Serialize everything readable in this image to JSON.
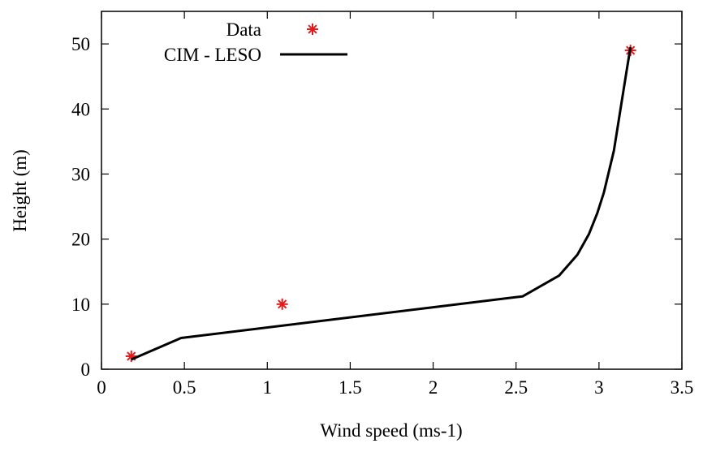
{
  "chart_data": {
    "type": "line",
    "x_label": "Wind speed (ms-1)",
    "y_label": "Height (m)",
    "xlim": [
      0,
      3.5
    ],
    "xticks": [
      0,
      0.5,
      1,
      1.5,
      2,
      2.5,
      3,
      3.5
    ],
    "ylim": [
      0,
      55
    ],
    "yticks": [
      0,
      10,
      20,
      30,
      40,
      50
    ],
    "legend": "top-left",
    "series": [
      {
        "name": "Data",
        "color": "#e41a1c",
        "mode": "markers",
        "x": [
          0.18,
          1.09,
          3.19
        ],
        "values": [
          2,
          10,
          49
        ]
      },
      {
        "name": "CIM - LESO",
        "color": "#000000",
        "mode": "line",
        "x": [
          0.18,
          0.48,
          2.54,
          2.76,
          2.87,
          2.94,
          2.99,
          3.03,
          3.06,
          3.09,
          3.11,
          3.13,
          3.15,
          3.17,
          3.19
        ],
        "values": [
          1.5,
          4.8,
          11.2,
          14.4,
          17.6,
          20.8,
          24,
          27.2,
          30.4,
          33.6,
          36.8,
          40,
          43.2,
          46.4,
          49.5
        ]
      }
    ]
  }
}
